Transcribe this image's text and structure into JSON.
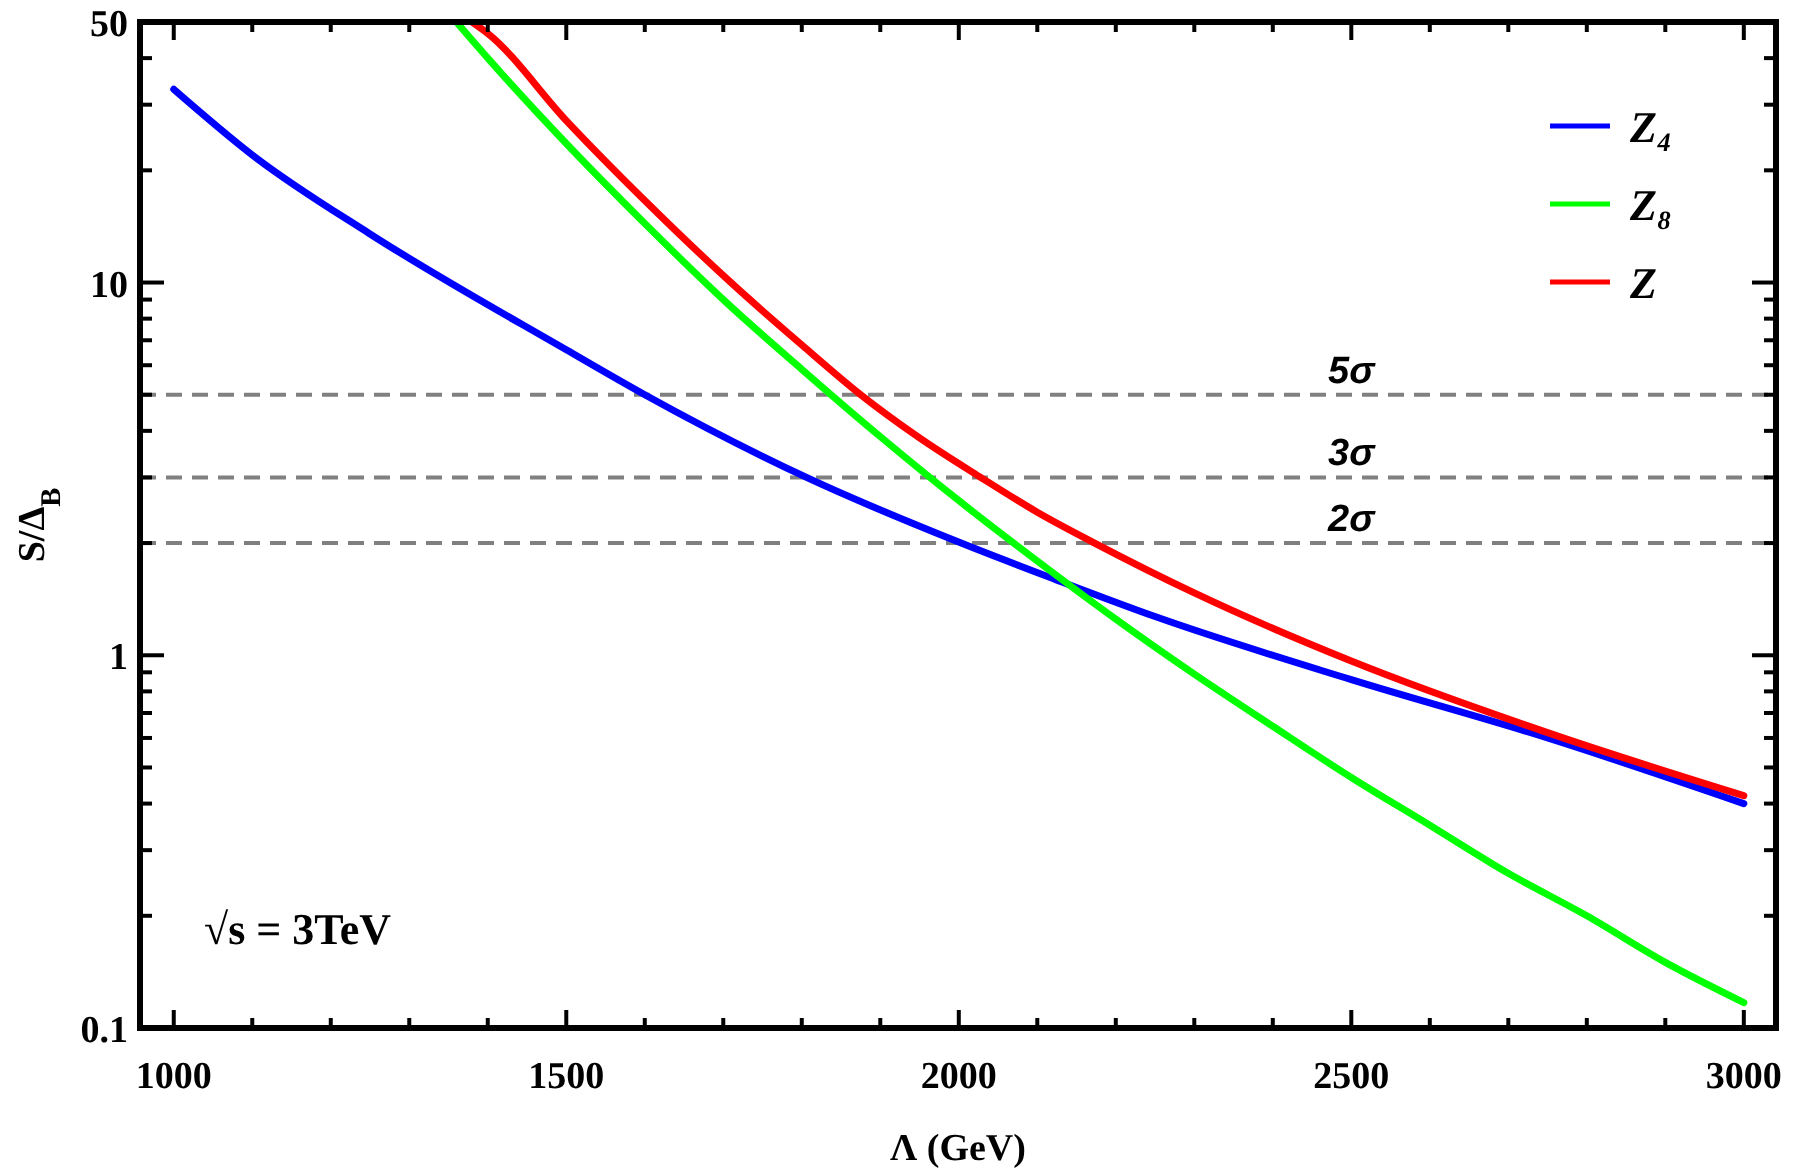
{
  "chart_data": {
    "type": "line",
    "xlabel": "Λ (GeV)",
    "ylabel": "S/Δ$_{B}$",
    "log": "y",
    "grid": false,
    "legend": "top right",
    "line_style": "solid",
    "marker": "none",
    "xlim": [
      957,
      3041
    ],
    "ylim": [
      0.1,
      50
    ],
    "xticks": [
      1000,
      {
        "value": 1100,
        "label": null
      },
      {
        "value": 1200,
        "label": null
      },
      {
        "value": 1300,
        "label": null
      },
      {
        "value": 1400,
        "label": null
      },
      1500,
      {
        "value": 1600,
        "label": null
      },
      {
        "value": 1700,
        "label": null
      },
      {
        "value": 1800,
        "label": null
      },
      {
        "value": 1900,
        "label": null
      },
      2000,
      {
        "value": 2100,
        "label": null
      },
      {
        "value": 2200,
        "label": null
      },
      {
        "value": 2300,
        "label": null
      },
      {
        "value": 2400,
        "label": null
      },
      2500,
      {
        "value": 2600,
        "label": null
      },
      {
        "value": 2700,
        "label": null
      },
      {
        "value": 2800,
        "label": null
      },
      {
        "value": 2900,
        "label": null
      },
      3000
    ],
    "yticks": [
      0.1,
      {
        "value": 0.2,
        "label": null
      },
      {
        "value": 0.3,
        "label": null
      },
      {
        "value": 0.4,
        "label": null
      },
      {
        "value": 0.5,
        "label": null
      },
      {
        "value": 0.6,
        "label": null
      },
      {
        "value": 0.7,
        "label": null
      },
      {
        "value": 0.8,
        "label": null
      },
      {
        "value": 0.9,
        "label": null
      },
      1,
      {
        "value": 2,
        "label": null
      },
      {
        "value": 3,
        "label": null
      },
      {
        "value": 4,
        "label": null
      },
      {
        "value": 5,
        "label": null
      },
      {
        "value": 6,
        "label": null
      },
      {
        "value": 7,
        "label": null
      },
      {
        "value": 8,
        "label": null
      },
      {
        "value": 9,
        "label": null
      },
      10,
      {
        "value": 20,
        "label": null
      },
      {
        "value": 30,
        "label": null
      },
      {
        "value": 40,
        "label": null
      },
      50
    ],
    "series": [
      {
        "name": "Z₄",
        "color": "#0000ff",
        "x": [
          1000,
          1100,
          1250,
          1500,
          1600,
          1806,
          2003,
          2122,
          2250,
          2500,
          2750,
          3000
        ],
        "values": [
          33,
          22,
          13.5,
          6.6,
          5.0,
          3.0,
          2.0,
          1.6,
          1.27,
          0.86,
          0.6,
          0.4
        ]
      },
      {
        "name": "Z₈",
        "color": "#00ff00",
        "x": [
          1360,
          1400,
          1500,
          1600,
          1700,
          1800,
          1900,
          2000,
          2100,
          2200,
          2300,
          2400,
          2500,
          2600,
          2700,
          2800,
          2900,
          3000
        ],
        "values": [
          50,
          40,
          23.6,
          14.4,
          9.0,
          5.85,
          3.86,
          2.6,
          1.79,
          1.25,
          0.89,
          0.645,
          0.47,
          0.35,
          0.26,
          0.2,
          0.15,
          0.117
        ]
      },
      {
        "name": "Z",
        "color": "#ff0000",
        "x": [
          1380,
          1400,
          1500,
          1600,
          1712,
          1800,
          1875,
          1950,
          2028,
          2100,
          2173,
          2300,
          2500,
          2750,
          3000
        ],
        "values": [
          50,
          46.6,
          27.2,
          16.6,
          9.9,
          6.8,
          5.0,
          3.83,
          3.0,
          2.42,
          2.0,
          1.47,
          0.965,
          0.62,
          0.42
        ]
      }
    ],
    "ref_lines": [
      {
        "axis": "y",
        "value": 5,
        "label": "5σ",
        "color": "#808080",
        "line_style": "dashed"
      },
      {
        "axis": "y",
        "value": 3,
        "label": "3σ",
        "color": "#808080",
        "line_style": "dashed"
      },
      {
        "axis": "y",
        "value": 2,
        "label": "2σ",
        "color": "#808080",
        "line_style": "dashed"
      }
    ],
    "annotations": [
      "√s = 3TeV"
    ]
  }
}
